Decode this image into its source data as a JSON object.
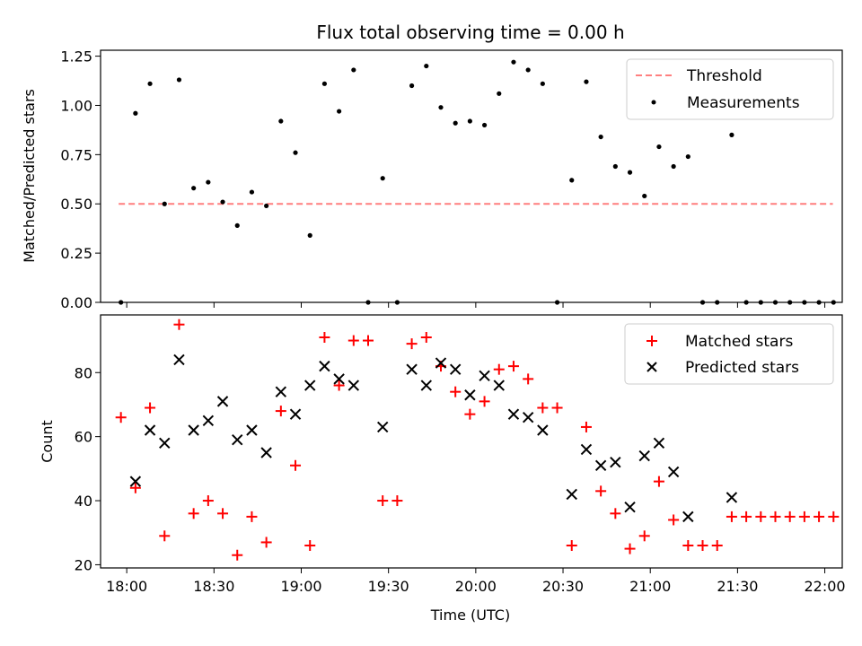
{
  "chart_data": [
    {
      "type": "scatter",
      "title": "Flux total observing time = 0.00 h",
      "ylabel": "Matched/Predicted stars",
      "xlabel": "",
      "ylim": [
        0,
        1.28
      ],
      "yticks": [
        0.0,
        0.25,
        0.5,
        0.75,
        1.0,
        1.25
      ],
      "ytick_labels": [
        "0.00",
        "0.25",
        "0.50",
        "0.75",
        "1.00",
        "1.25"
      ],
      "legend_position": "top-right",
      "threshold": {
        "name": "Threshold",
        "x": [
          "18:00",
          "22:00"
        ],
        "y": 0.5,
        "color": "#ff7f7f",
        "style": "dashed"
      },
      "series": [
        {
          "name": "Measurements",
          "color": "#000000",
          "marker": "dot",
          "x": [
            "17:58",
            "18:03",
            "18:08",
            "18:13",
            "18:18",
            "18:23",
            "18:28",
            "18:33",
            "18:38",
            "18:43",
            "18:48",
            "18:53",
            "18:58",
            "19:03",
            "19:08",
            "19:13",
            "19:18",
            "19:23",
            "19:28",
            "19:33",
            "19:38",
            "19:43",
            "19:48",
            "19:53",
            "19:58",
            "20:03",
            "20:08",
            "20:13",
            "20:18",
            "20:23",
            "20:28",
            "20:33",
            "20:38",
            "20:43",
            "20:48",
            "20:53",
            "20:58",
            "21:03",
            "21:08",
            "21:13",
            "21:18",
            "21:23",
            "21:28",
            "21:33",
            "21:38",
            "21:43",
            "21:48",
            "21:53",
            "21:58",
            "22:03"
          ],
          "y": [
            0.0,
            0.96,
            1.11,
            0.5,
            1.13,
            0.58,
            0.61,
            0.51,
            0.39,
            0.56,
            0.49,
            0.92,
            0.76,
            0.34,
            1.11,
            0.97,
            1.18,
            0.0,
            0.63,
            0.0,
            1.1,
            1.2,
            0.99,
            0.91,
            0.92,
            0.9,
            1.06,
            1.22,
            1.18,
            1.11,
            0.0,
            0.62,
            1.12,
            0.84,
            0.69,
            0.66,
            0.54,
            0.79,
            0.69,
            0.74,
            0.0,
            0.0,
            0.85,
            0.0,
            0.0,
            0.0,
            0.0,
            0.0,
            0.0,
            0.0
          ]
        }
      ]
    },
    {
      "type": "scatter",
      "title": "",
      "ylabel": "Count",
      "xlabel": "Time (UTC)",
      "ylim": [
        19,
        98
      ],
      "yticks": [
        20,
        40,
        60,
        80
      ],
      "ytick_labels": [
        "20",
        "40",
        "60",
        "80"
      ],
      "xlim": [
        "17:51",
        "22:06"
      ],
      "xticks": [
        "18:00",
        "18:30",
        "19:00",
        "19:30",
        "20:00",
        "20:30",
        "21:00",
        "21:30",
        "22:00"
      ],
      "xtick_labels": [
        "18:00",
        "18:30",
        "19:00",
        "19:30",
        "20:00",
        "20:30",
        "21:00",
        "21:30",
        "22:00"
      ],
      "legend_position": "top-right",
      "series": [
        {
          "name": "Matched stars",
          "color": "#ff0000",
          "marker": "plus",
          "x": [
            "17:58",
            "18:03",
            "18:08",
            "18:13",
            "18:18",
            "18:23",
            "18:28",
            "18:33",
            "18:38",
            "18:43",
            "18:48",
            "18:53",
            "18:58",
            "19:03",
            "19:08",
            "19:13",
            "19:18",
            "19:23",
            "19:28",
            "19:33",
            "19:38",
            "19:43",
            "19:48",
            "19:53",
            "19:58",
            "20:03",
            "20:08",
            "20:13",
            "20:18",
            "20:23",
            "20:28",
            "20:33",
            "20:38",
            "20:43",
            "20:48",
            "20:53",
            "20:58",
            "21:03",
            "21:08",
            "21:13",
            "21:18",
            "21:23",
            "21:28",
            "21:33",
            "21:38",
            "21:43",
            "21:48",
            "21:53",
            "21:58",
            "22:03"
          ],
          "y": [
            66,
            44,
            69,
            29,
            95,
            36,
            40,
            36,
            23,
            35,
            27,
            68,
            51,
            26,
            91,
            76,
            90,
            90,
            40,
            40,
            89,
            91,
            82,
            74,
            67,
            71,
            81,
            82,
            78,
            69,
            69,
            26,
            63,
            43,
            36,
            25,
            29,
            46,
            34,
            26,
            26,
            26,
            35,
            35,
            35,
            35,
            35,
            35,
            35,
            35
          ]
        },
        {
          "name": "Predicted stars",
          "color": "#000000",
          "marker": "x",
          "x": [
            "18:03",
            "18:08",
            "18:13",
            "18:18",
            "18:23",
            "18:28",
            "18:33",
            "18:38",
            "18:43",
            "18:48",
            "18:53",
            "18:58",
            "19:03",
            "19:08",
            "19:13",
            "19:18",
            "19:28",
            "19:38",
            "19:43",
            "19:48",
            "19:53",
            "19:58",
            "20:03",
            "20:08",
            "20:13",
            "20:18",
            "20:23",
            "20:33",
            "20:38",
            "20:43",
            "20:48",
            "20:53",
            "20:58",
            "21:03",
            "21:08",
            "21:13",
            "21:28"
          ],
          "y": [
            46,
            62,
            58,
            84,
            62,
            65,
            71,
            59,
            62,
            55,
            74,
            67,
            76,
            82,
            78,
            76,
            63,
            81,
            76,
            83,
            81,
            73,
            79,
            76,
            67,
            66,
            62,
            42,
            56,
            51,
            52,
            38,
            54,
            58,
            49,
            35,
            41
          ]
        }
      ]
    }
  ]
}
